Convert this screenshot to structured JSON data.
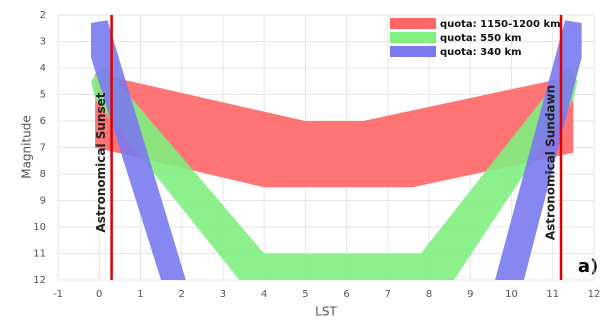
{
  "chart_data": {
    "type": "band",
    "xlabel": "LST",
    "ylabel": "Magnitude",
    "xlim": [
      -1,
      12
    ],
    "ylim": [
      12,
      2
    ],
    "y_inverted": true,
    "xticks": [
      -1,
      0,
      1,
      2,
      3,
      4,
      5,
      6,
      7,
      8,
      9,
      10,
      11,
      12
    ],
    "yticks": [
      2,
      3,
      4,
      5,
      6,
      7,
      8,
      9,
      10,
      11,
      12
    ],
    "grid": true,
    "legend": "upper right",
    "series": [
      {
        "name": "quota: 1150-1200 km",
        "color": "#ff6666",
        "parts": [
          {
            "x": [
              -0.1,
              5,
              6.4,
              11.5,
              11.5,
              7.6,
              4,
              -0.1
            ],
            "values": [
              4.2,
              6.0,
              6.0,
              4.3,
              7.2,
              8.5,
              8.5,
              7.0
            ]
          }
        ]
      },
      {
        "name": "quota: 550 km",
        "color": "#80f080",
        "parts": [
          {
            "x": [
              -0.1,
              -0.2,
              0.1,
              4,
              7.8,
              11.4,
              11.6,
              11.5,
              8.6,
              3.4
            ],
            "values": [
              5.2,
              4.5,
              3.9,
              11,
              11,
              3.9,
              4.5,
              5.2,
              12,
              12
            ]
          }
        ]
      },
      {
        "name": "quota: 340 km",
        "color": "#7a7af0",
        "parts": [
          {
            "x": [
              -0.2,
              0.2,
              2.1,
              1.5,
              -0.2
            ],
            "values": [
              2.3,
              2.2,
              12,
              12,
              3.6
            ]
          },
          {
            "x": [
              11.3,
              11.7,
              11.7,
              10.3,
              9.6
            ],
            "values": [
              2.2,
              2.3,
              3.6,
              12,
              12
            ]
          }
        ]
      }
    ],
    "vlines": [
      {
        "x": 0.3,
        "label": "Astronomical Sunset",
        "color": "#dd0000"
      },
      {
        "x": 11.2,
        "label": "Astronomical Sundawn",
        "color": "#dd0000"
      }
    ],
    "panel_label": "a)"
  }
}
